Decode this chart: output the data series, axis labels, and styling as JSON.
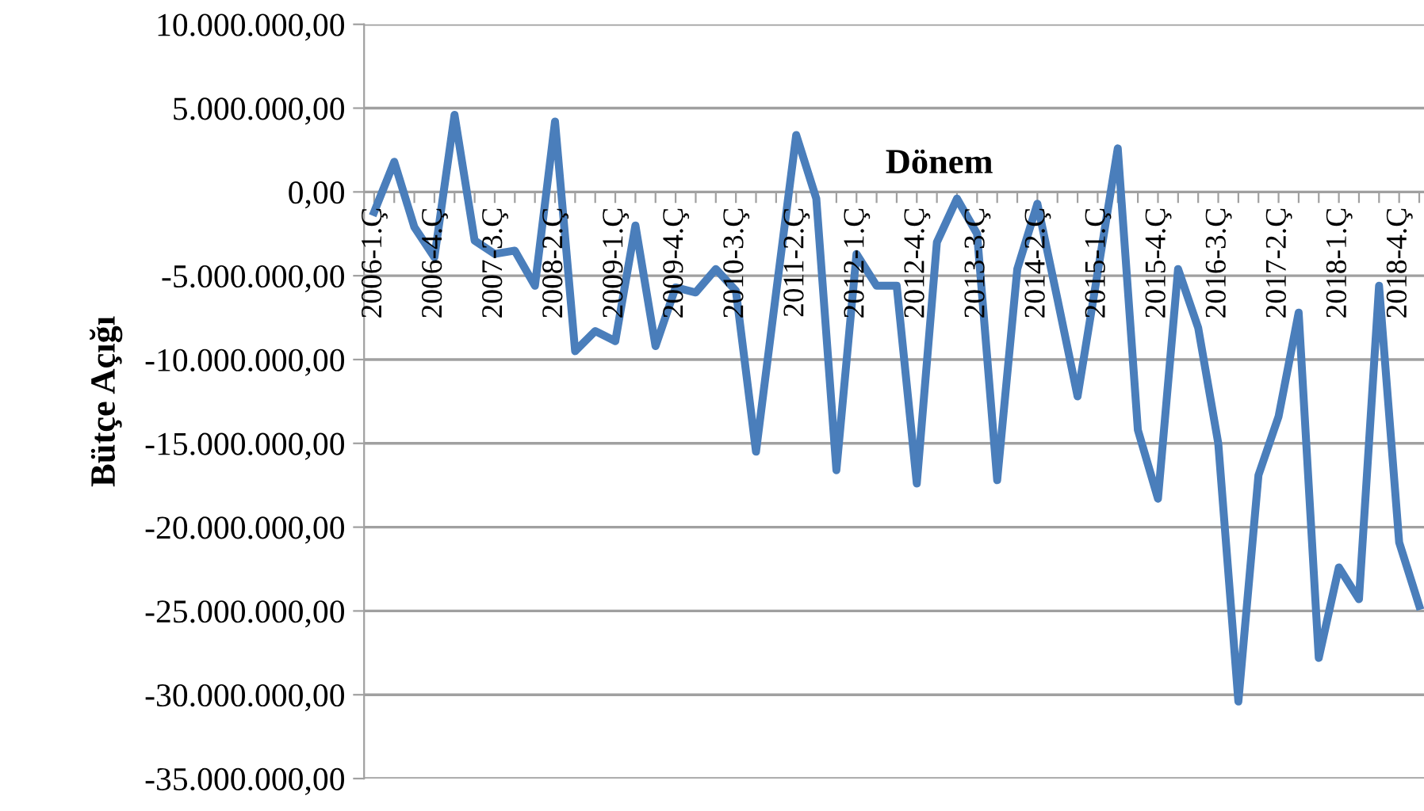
{
  "chart_data": {
    "type": "line",
    "xlabel": "Dönem",
    "ylabel": "Bütçe Açığı",
    "categories": [
      "2006-1.Ç",
      null,
      null,
      "2006-4.Ç",
      null,
      null,
      "2007-3.Ç",
      null,
      null,
      "2008-2.Ç",
      null,
      null,
      "2009-1.Ç",
      null,
      null,
      "2009-4.Ç",
      null,
      null,
      "2010-3.Ç",
      null,
      null,
      "2011-2.Ç",
      null,
      null,
      "2012-1.Ç",
      null,
      null,
      "2012-4.Ç",
      null,
      null,
      "2013-3.Ç",
      null,
      null,
      "2014-2.Ç",
      null,
      null,
      "2015-1.Ç",
      null,
      null,
      "2015-4.Ç",
      null,
      null,
      "2016-3.Ç",
      null,
      null,
      "2017-2.Ç",
      null,
      null,
      "2018-1.Ç",
      null,
      null,
      "2018-4.Ç",
      null
    ],
    "series": [
      {
        "color": "#4a7ebb",
        "values": [
          -1200000,
          1800000,
          -2100000,
          -3900000,
          4600000,
          -2900000,
          -3700000,
          -3500000,
          -5600000,
          4200000,
          -9500000,
          -8300000,
          -8900000,
          -2000000,
          -9200000,
          -5700000,
          -6000000,
          -4600000,
          -5900000,
          -15500000,
          -6000000,
          3400000,
          -400000,
          -16600000,
          -3700000,
          -5600000,
          -5600000,
          -17400000,
          -3000000,
          -400000,
          -2500000,
          -17200000,
          -4600000,
          -700000,
          -6400000,
          -12200000,
          -4800000,
          2600000,
          -14200000,
          -18300000,
          -4600000,
          -8100000,
          -15000000,
          -30400000,
          -16900000,
          -13400000,
          -7200000,
          -27800000,
          -22400000,
          -24300000,
          -5600000,
          -20900000,
          -24700000
        ]
      }
    ],
    "ylim": [
      -35000000,
      10000000
    ],
    "yticks": [
      {
        "value": -35000000,
        "label": "-35.000.000,00"
      },
      {
        "value": -30000000,
        "label": "-30.000.000,00"
      },
      {
        "value": -25000000,
        "label": "-25.000.000,00"
      },
      {
        "value": -20000000,
        "label": "-20.000.000,00"
      },
      {
        "value": -15000000,
        "label": "-15.000.000,00"
      },
      {
        "value": -10000000,
        "label": "-10.000.000,00"
      },
      {
        "value": -5000000,
        "label": "-5.000.000,00"
      },
      {
        "value": 0,
        "label": "0,00"
      },
      {
        "value": 5000000,
        "label": "5.000.000,00"
      },
      {
        "value": 10000000,
        "label": "10.000.000,00"
      }
    ],
    "grid": "y",
    "marker": "none",
    "line_style": "solid"
  }
}
